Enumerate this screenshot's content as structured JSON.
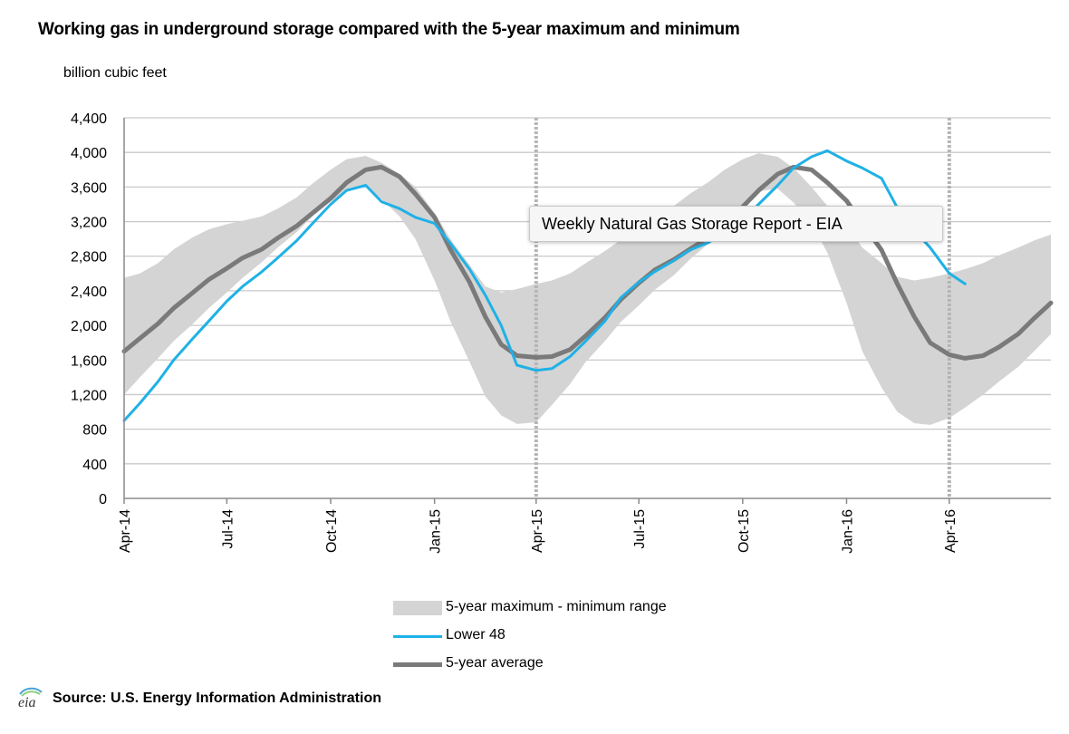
{
  "tooltip": "Weekly Natural Gas Storage Report - EIA",
  "source": "Source:  U.S. Energy Information Administration",
  "chart_data": {
    "type": "area",
    "title": "Working gas in underground storage compared with the  5-year maximum and minimum",
    "ylabel": "billion  cubic feet",
    "xlabel": "",
    "ylim": [
      0,
      4400
    ],
    "yticks": [
      "0",
      "400",
      "800",
      "1,200",
      "1,600",
      "2,000",
      "2,400",
      "2,800",
      "3,200",
      "3,600",
      "4,000",
      "4,400"
    ],
    "ytick_values": [
      0,
      400,
      800,
      1200,
      1600,
      2000,
      2400,
      2800,
      3200,
      3600,
      4000,
      4400
    ],
    "xlim": [
      "2014-04-01",
      "2016-06-30"
    ],
    "xtick_labels": [
      "Apr-14",
      "Jul-14",
      "Oct-14",
      "Jan-15",
      "Apr-15",
      "Jul-15",
      "Oct-15",
      "Jan-16",
      "Apr-16"
    ],
    "xtick_dates": [
      "2014-04-01",
      "2014-07-01",
      "2014-10-01",
      "2015-01-01",
      "2015-04-01",
      "2015-07-01",
      "2015-10-01",
      "2016-01-01",
      "2016-04-01"
    ],
    "vertical_markers": [
      "2015-04-01",
      "2016-04-01"
    ],
    "grid": true,
    "legend_position": "bottom",
    "series": [
      {
        "name": "5-year maximum - minimum range",
        "type": "band",
        "color": "#d4d4d4",
        "x": [
          "2014-04-01",
          "2014-04-15",
          "2014-05-01",
          "2014-05-15",
          "2014-06-01",
          "2014-06-15",
          "2014-07-01",
          "2014-07-15",
          "2014-08-01",
          "2014-08-15",
          "2014-09-01",
          "2014-09-15",
          "2014-10-01",
          "2014-10-15",
          "2014-11-01",
          "2014-11-15",
          "2014-12-01",
          "2014-12-15",
          "2015-01-01",
          "2015-01-15",
          "2015-02-01",
          "2015-02-15",
          "2015-03-01",
          "2015-03-15",
          "2015-04-01",
          "2015-04-15",
          "2015-05-01",
          "2015-05-15",
          "2015-06-01",
          "2015-06-15",
          "2015-07-01",
          "2015-07-15",
          "2015-08-01",
          "2015-08-15",
          "2015-09-01",
          "2015-09-15",
          "2015-10-01",
          "2015-10-15",
          "2015-11-01",
          "2015-11-15",
          "2015-12-01",
          "2015-12-15",
          "2016-01-01",
          "2016-01-15",
          "2016-02-01",
          "2016-02-15",
          "2016-03-01",
          "2016-03-15",
          "2016-04-01",
          "2016-04-15",
          "2016-05-01",
          "2016-05-15",
          "2016-06-01",
          "2016-06-15",
          "2016-06-30"
        ],
        "max": [
          2550,
          2600,
          2720,
          2880,
          3020,
          3110,
          3170,
          3210,
          3260,
          3350,
          3480,
          3640,
          3800,
          3920,
          3960,
          3880,
          3750,
          3600,
          3300,
          3000,
          2700,
          2450,
          2380,
          2420,
          2480,
          2520,
          2600,
          2720,
          2860,
          2990,
          3120,
          3250,
          3380,
          3520,
          3660,
          3800,
          3920,
          3990,
          3950,
          3820,
          3600,
          3380,
          3150,
          2900,
          2720,
          2560,
          2520,
          2550,
          2600,
          2650,
          2720,
          2810,
          2900,
          2980,
          3050
        ],
        "min": [
          1200,
          1400,
          1620,
          1820,
          2020,
          2200,
          2380,
          2550,
          2730,
          2900,
          3080,
          3260,
          3430,
          3560,
          3600,
          3460,
          3260,
          3000,
          2520,
          2050,
          1580,
          1180,
          960,
          860,
          880,
          1080,
          1320,
          1580,
          1820,
          2040,
          2230,
          2410,
          2580,
          2760,
          2950,
          3150,
          3360,
          3550,
          3580,
          3420,
          3180,
          2840,
          2260,
          1700,
          1280,
          1000,
          870,
          850,
          930,
          1050,
          1200,
          1350,
          1520,
          1700,
          1900
        ]
      },
      {
        "name": "Lower 48",
        "type": "line",
        "color": "#1fb1e6",
        "x": [
          "2014-04-01",
          "2014-04-15",
          "2014-05-01",
          "2014-05-15",
          "2014-06-01",
          "2014-06-15",
          "2014-07-01",
          "2014-07-15",
          "2014-08-01",
          "2014-08-15",
          "2014-09-01",
          "2014-09-15",
          "2014-10-01",
          "2014-10-15",
          "2014-11-01",
          "2014-11-15",
          "2014-12-01",
          "2014-12-15",
          "2015-01-01",
          "2015-01-15",
          "2015-02-01",
          "2015-02-15",
          "2015-03-01",
          "2015-03-15",
          "2015-04-01",
          "2015-04-15",
          "2015-05-01",
          "2015-05-15",
          "2015-06-01",
          "2015-06-15",
          "2015-07-01",
          "2015-07-15",
          "2015-08-01",
          "2015-08-15",
          "2015-09-01",
          "2015-09-15",
          "2015-10-01",
          "2015-10-15",
          "2015-11-01",
          "2015-11-15",
          "2015-12-01",
          "2015-12-15",
          "2016-01-01",
          "2016-01-15",
          "2016-02-01",
          "2016-02-15",
          "2016-03-01",
          "2016-03-15",
          "2016-04-01",
          "2016-04-15"
        ],
        "values": [
          900,
          1100,
          1350,
          1600,
          1850,
          2050,
          2280,
          2450,
          2620,
          2780,
          2980,
          3180,
          3400,
          3560,
          3620,
          3430,
          3350,
          3250,
          3180,
          2950,
          2650,
          2350,
          2000,
          1540,
          1480,
          1500,
          1640,
          1820,
          2050,
          2320,
          2500,
          2620,
          2750,
          2870,
          2960,
          3080,
          3220,
          3400,
          3620,
          3820,
          3950,
          4020,
          3900,
          3820,
          3700,
          3360,
          3100,
          2900,
          2600,
          2480
        ]
      },
      {
        "name": "5-year average",
        "type": "line",
        "color": "#7a7a7a",
        "x": [
          "2014-04-01",
          "2014-04-15",
          "2014-05-01",
          "2014-05-15",
          "2014-06-01",
          "2014-06-15",
          "2014-07-01",
          "2014-07-15",
          "2014-08-01",
          "2014-08-15",
          "2014-09-01",
          "2014-09-15",
          "2014-10-01",
          "2014-10-15",
          "2014-11-01",
          "2014-11-15",
          "2014-12-01",
          "2014-12-15",
          "2015-01-01",
          "2015-01-15",
          "2015-02-01",
          "2015-02-15",
          "2015-03-01",
          "2015-03-15",
          "2015-04-01",
          "2015-04-15",
          "2015-05-01",
          "2015-05-15",
          "2015-06-01",
          "2015-06-15",
          "2015-07-01",
          "2015-07-15",
          "2015-08-01",
          "2015-08-15",
          "2015-09-01",
          "2015-09-15",
          "2015-10-01",
          "2015-10-15",
          "2015-11-01",
          "2015-11-15",
          "2015-12-01",
          "2015-12-15",
          "2016-01-01",
          "2016-01-15",
          "2016-02-01",
          "2016-02-15",
          "2016-03-01",
          "2016-03-15",
          "2016-04-01",
          "2016-04-15",
          "2016-05-01",
          "2016-05-15",
          "2016-06-01",
          "2016-06-15",
          "2016-06-30"
        ],
        "values": [
          1700,
          1850,
          2020,
          2200,
          2380,
          2530,
          2660,
          2780,
          2880,
          3010,
          3150,
          3300,
          3470,
          3650,
          3800,
          3830,
          3720,
          3520,
          3250,
          2880,
          2500,
          2100,
          1780,
          1650,
          1630,
          1640,
          1720,
          1880,
          2090,
          2300,
          2490,
          2640,
          2760,
          2880,
          3020,
          3180,
          3370,
          3560,
          3750,
          3830,
          3800,
          3650,
          3440,
          3180,
          2870,
          2480,
          2100,
          1800,
          1660,
          1620,
          1650,
          1750,
          1900,
          2080,
          2260
        ]
      }
    ]
  }
}
